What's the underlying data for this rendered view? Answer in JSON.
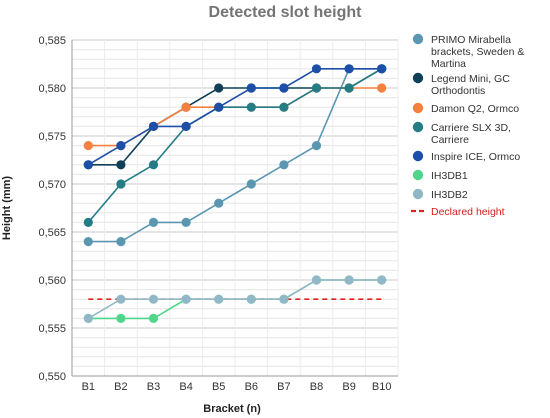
{
  "chart_data": {
    "type": "line",
    "title": "Detected slot height",
    "xlabel": "Bracket (n)",
    "ylabel": "Height (mm)",
    "categories": [
      "B1",
      "B2",
      "B3",
      "B4",
      "B5",
      "B6",
      "B7",
      "B8",
      "B9",
      "B10"
    ],
    "ylim": [
      0.55,
      0.585
    ],
    "yticks": [
      "0,550",
      "0,555",
      "0,560",
      "0,565",
      "0,570",
      "0,575",
      "0,580",
      "0,585"
    ],
    "grid": true,
    "legend_position": "right",
    "series": [
      {
        "name": "PRIMO Mirabella brackets, Sweden & Martina",
        "color": "#5b97b1",
        "values": [
          0.564,
          0.564,
          0.566,
          0.566,
          0.568,
          0.57,
          0.572,
          0.574,
          0.582,
          0.582
        ]
      },
      {
        "name": "Legend Mini, GC Orthodontis",
        "color": "#0f4057",
        "values": [
          0.572,
          0.572,
          0.576,
          0.578,
          0.58,
          0.58,
          0.58,
          0.58,
          0.58,
          0.582
        ]
      },
      {
        "name": "Damon Q2, Ormco",
        "color": "#f4813f",
        "values": [
          0.574,
          0.574,
          0.576,
          0.578,
          0.578,
          0.578,
          0.578,
          0.58,
          0.58,
          0.58
        ]
      },
      {
        "name": "Carriere SLX 3D, Carriere",
        "color": "#247c85",
        "values": [
          0.566,
          0.57,
          0.572,
          0.576,
          0.578,
          0.578,
          0.578,
          0.58,
          0.58,
          0.582
        ]
      },
      {
        "name": "Inspire ICE, Ormco",
        "color": "#1d4fa8",
        "values": [
          0.572,
          0.574,
          0.576,
          0.576,
          0.578,
          0.58,
          0.58,
          0.582,
          0.582,
          0.582
        ]
      },
      {
        "name": "IH3DB1",
        "color": "#4fd68a",
        "values": [
          0.556,
          0.556,
          0.556,
          0.558,
          0.558,
          0.558,
          0.558,
          0.56,
          0.56,
          0.56
        ]
      },
      {
        "name": "IH3DB2",
        "color": "#92b8c8",
        "values": [
          0.556,
          0.558,
          0.558,
          0.558,
          0.558,
          0.558,
          0.558,
          0.56,
          0.56,
          0.56
        ]
      }
    ],
    "reference_line": {
      "name": "Declared height",
      "value": 0.558,
      "color": "#e02424",
      "style": "dashed"
    }
  }
}
